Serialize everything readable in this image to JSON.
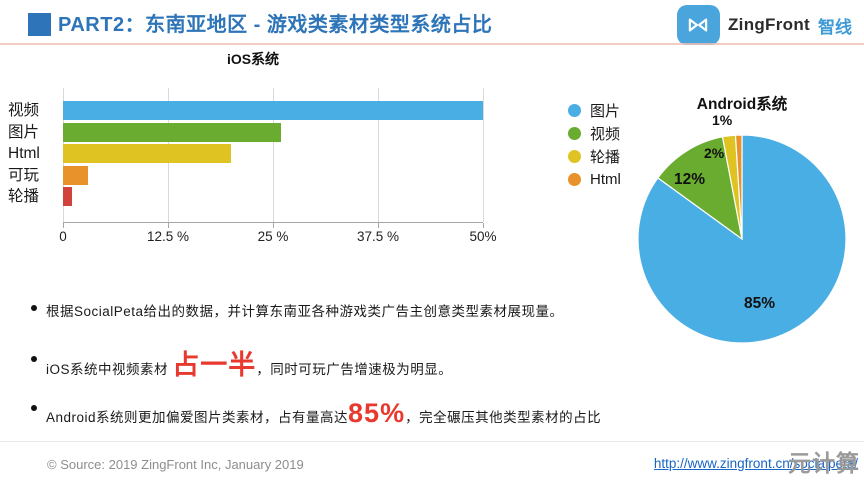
{
  "header": {
    "title": "PART2：东南亚地区 - 游戏类素材类型系统占比",
    "accent_color": "#2E74B8",
    "logo": {
      "brand": "ZingFront",
      "brand_cn": "智线",
      "icon_color": "#4BA5DD"
    }
  },
  "chart_data": [
    {
      "type": "bar",
      "orientation": "horizontal",
      "title": "iOS系统",
      "categories": [
        "视频",
        "图片",
        "Html",
        "可玩",
        "轮播"
      ],
      "values": [
        50,
        26,
        20,
        3,
        1.1
      ],
      "unit": "%",
      "colors": [
        "#49AEE3",
        "#69AC30",
        "#DFC322",
        "#E8922C",
        "#D2423D"
      ],
      "xlim": [
        0,
        50
      ],
      "x_ticks": [
        "0",
        "12.5 %",
        "25 %",
        "37.5 %",
        "50%"
      ],
      "grid": true,
      "legend_position": "none"
    },
    {
      "type": "pie",
      "title": "Android系统",
      "labels": [
        "图片",
        "视频",
        "轮播",
        "Html"
      ],
      "values": [
        85,
        12,
        2,
        1
      ],
      "colors": [
        "#49AEE3",
        "#69AC30",
        "#DFC322",
        "#E8922C"
      ],
      "slice_labels": [
        "85%",
        "12%",
        "2%",
        "1%"
      ],
      "legend_position": "left",
      "start_angle": "top",
      "direction": "clockwise"
    }
  ],
  "bullets": [
    {
      "runs": [
        {
          "text": "根据SocialPeta给出的数据，并计算东南亚各种游戏类广告主创意类型素材展现量。"
        }
      ]
    },
    {
      "runs": [
        {
          "text": "iOS系统中视频素材 "
        },
        {
          "text": "占一半",
          "emphasis": true
        },
        {
          "text": "，同时可玩广告增速极为明显。"
        }
      ]
    },
    {
      "runs": [
        {
          "text": "Android系统则更加偏爱图片类素材，占有量高达"
        },
        {
          "text": "85%",
          "emphasis": true
        },
        {
          "text": "，完全碾压其他类型素材的占比"
        }
      ]
    }
  ],
  "accent_red": "#E8392E",
  "footer": {
    "source": "© Source: 2019 ZingFront Inc, January 2019",
    "url": "http://www.zingfront.cn/socialpeta/",
    "watermark": "元计算"
  }
}
